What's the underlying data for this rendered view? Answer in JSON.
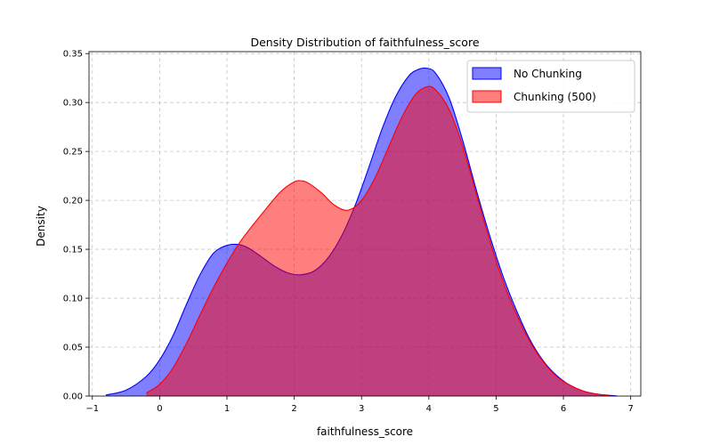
{
  "chart_data": {
    "type": "area",
    "title": "Density Distribution of faithfulness_score",
    "xlabel": "faithfulness_score",
    "ylabel": "Density",
    "xlim": [
      -1.05,
      7.15
    ],
    "ylim": [
      0,
      0.352
    ],
    "x_ticks": [
      -1,
      0,
      1,
      2,
      3,
      4,
      5,
      6,
      7
    ],
    "y_ticks": [
      0.0,
      0.05,
      0.1,
      0.15,
      0.2,
      0.25,
      0.3,
      0.35
    ],
    "y_tick_labels": [
      "0.00",
      "0.05",
      "0.10",
      "0.15",
      "0.20",
      "0.25",
      "0.30",
      "0.35"
    ],
    "grid": true,
    "legend_position": "top-right",
    "series": [
      {
        "name": "No Chunking",
        "color": "#0000ff",
        "fill": "#0000ff",
        "x": [
          -0.8,
          -0.5,
          -0.2,
          0.0,
          0.2,
          0.4,
          0.6,
          0.8,
          1.0,
          1.15,
          1.3,
          1.5,
          1.7,
          1.9,
          2.1,
          2.3,
          2.5,
          2.7,
          2.9,
          3.1,
          3.3,
          3.5,
          3.7,
          3.85,
          3.97,
          4.1,
          4.3,
          4.5,
          4.7,
          4.9,
          5.1,
          5.3,
          5.5,
          5.7,
          5.9,
          6.1,
          6.3,
          6.5,
          6.8
        ],
        "y": [
          0.001,
          0.006,
          0.02,
          0.037,
          0.062,
          0.094,
          0.124,
          0.146,
          0.154,
          0.155,
          0.152,
          0.143,
          0.133,
          0.126,
          0.124,
          0.128,
          0.141,
          0.163,
          0.194,
          0.232,
          0.272,
          0.305,
          0.327,
          0.334,
          0.335,
          0.33,
          0.305,
          0.262,
          0.212,
          0.165,
          0.123,
          0.088,
          0.058,
          0.036,
          0.021,
          0.011,
          0.005,
          0.002,
          0.0
        ]
      },
      {
        "name": "Chunking (500)",
        "color": "#ff0000",
        "fill": "#ff0000",
        "x": [
          -0.2,
          0.0,
          0.2,
          0.4,
          0.6,
          0.8,
          1.0,
          1.2,
          1.4,
          1.6,
          1.8,
          2.0,
          2.1,
          2.2,
          2.4,
          2.6,
          2.8,
          3.0,
          3.2,
          3.4,
          3.6,
          3.8,
          3.97,
          4.1,
          4.3,
          4.5,
          4.7,
          4.9,
          5.1,
          5.3,
          5.5,
          5.7,
          5.9,
          6.1,
          6.3,
          6.5,
          6.7
        ],
        "y": [
          0.003,
          0.012,
          0.029,
          0.054,
          0.083,
          0.111,
          0.136,
          0.158,
          0.176,
          0.193,
          0.209,
          0.219,
          0.22,
          0.218,
          0.208,
          0.195,
          0.19,
          0.2,
          0.223,
          0.254,
          0.285,
          0.308,
          0.316,
          0.313,
          0.293,
          0.256,
          0.208,
          0.16,
          0.118,
          0.084,
          0.056,
          0.035,
          0.02,
          0.011,
          0.005,
          0.002,
          0.0
        ]
      }
    ]
  }
}
